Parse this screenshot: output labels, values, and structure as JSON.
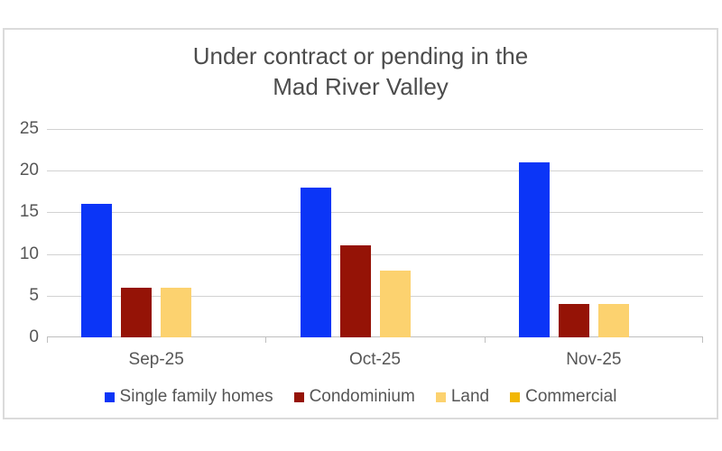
{
  "chart_data": {
    "type": "bar",
    "title": "Under contract or pending in the Mad River Valley",
    "title_lines": [
      "Under contract or pending in the",
      "Mad River Valley"
    ],
    "categories": [
      "Sep-25",
      "Oct-25",
      "Nov-25"
    ],
    "series": [
      {
        "name": "Single family homes",
        "color": "#0B35F7",
        "values": [
          16,
          18,
          21
        ]
      },
      {
        "name": "Condominium",
        "color": "#951306",
        "values": [
          6,
          11,
          4
        ]
      },
      {
        "name": "Land",
        "color": "#FCD26F",
        "values": [
          6,
          8,
          4
        ]
      },
      {
        "name": "Commercial",
        "color": "#F2B705",
        "values": [
          0,
          0,
          0
        ]
      }
    ],
    "ylim": [
      0,
      25
    ],
    "yticks": [
      0,
      5,
      10,
      15,
      20,
      25
    ],
    "grid": true,
    "legend_position": "bottom",
    "colors": {
      "title_text": "#4C4C4C",
      "axis_text": "#565656",
      "gridline": "#D2D2D2",
      "axis_line": "#BFBFBF",
      "panel_border": "#DBDBDB",
      "background": "#FFFFFF"
    }
  }
}
